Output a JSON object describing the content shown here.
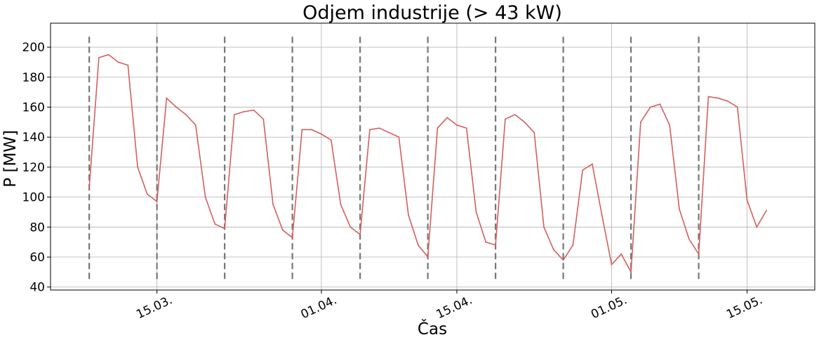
{
  "chart_data": {
    "type": "line",
    "title": "Odjem industrije (> 43 kW)",
    "xlabel": "Čas",
    "ylabel": "P [MW]",
    "xlim": [
      "2021-03-04",
      "2021-05-22"
    ],
    "ylim": [
      38,
      216
    ],
    "yticks": [
      40,
      60,
      80,
      100,
      120,
      140,
      160,
      180,
      200
    ],
    "xticks": [
      {
        "date": "2021-03-15",
        "label": "15.03."
      },
      {
        "date": "2021-04-01",
        "label": "01.04."
      },
      {
        "date": "2021-04-15",
        "label": "15.04."
      },
      {
        "date": "2021-05-01",
        "label": "01.05."
      },
      {
        "date": "2021-05-15",
        "label": "15.05."
      }
    ],
    "grid": true,
    "colors": {
      "series": "#d45f5f",
      "week_markers": "#777777"
    },
    "week_markers": [
      "2021-03-08",
      "2021-03-15",
      "2021-03-22",
      "2021-03-29",
      "2021-04-05",
      "2021-04-12",
      "2021-04-19",
      "2021-04-26",
      "2021-05-03",
      "2021-05-10"
    ],
    "series": [
      {
        "name": "",
        "points": [
          [
            "2021-03-08",
            106
          ],
          [
            "2021-03-09",
            193
          ],
          [
            "2021-03-10",
            195
          ],
          [
            "2021-03-11",
            190
          ],
          [
            "2021-03-12",
            188
          ],
          [
            "2021-03-13",
            120
          ],
          [
            "2021-03-14",
            102
          ],
          [
            "2021-03-15",
            97
          ],
          [
            "2021-03-16",
            166
          ],
          [
            "2021-03-17",
            160
          ],
          [
            "2021-03-18",
            155
          ],
          [
            "2021-03-19",
            148
          ],
          [
            "2021-03-20",
            100
          ],
          [
            "2021-03-21",
            82
          ],
          [
            "2021-03-22",
            79
          ],
          [
            "2021-03-23",
            155
          ],
          [
            "2021-03-24",
            157
          ],
          [
            "2021-03-25",
            158
          ],
          [
            "2021-03-26",
            152
          ],
          [
            "2021-03-27",
            95
          ],
          [
            "2021-03-28",
            78
          ],
          [
            "2021-03-29",
            73
          ],
          [
            "2021-03-30",
            145
          ],
          [
            "2021-03-31",
            145
          ],
          [
            "2021-04-01",
            142
          ],
          [
            "2021-04-02",
            138
          ],
          [
            "2021-04-03",
            95
          ],
          [
            "2021-04-04",
            80
          ],
          [
            "2021-04-05",
            75
          ],
          [
            "2021-04-06",
            145
          ],
          [
            "2021-04-07",
            146
          ],
          [
            "2021-04-08",
            143
          ],
          [
            "2021-04-09",
            140
          ],
          [
            "2021-04-10",
            88
          ],
          [
            "2021-04-11",
            68
          ],
          [
            "2021-04-12",
            60
          ],
          [
            "2021-04-13",
            146
          ],
          [
            "2021-04-14",
            153
          ],
          [
            "2021-04-15",
            148
          ],
          [
            "2021-04-16",
            146
          ],
          [
            "2021-04-17",
            90
          ],
          [
            "2021-04-18",
            70
          ],
          [
            "2021-04-19",
            68
          ],
          [
            "2021-04-20",
            152
          ],
          [
            "2021-04-21",
            155
          ],
          [
            "2021-04-22",
            150
          ],
          [
            "2021-04-23",
            143
          ],
          [
            "2021-04-24",
            80
          ],
          [
            "2021-04-25",
            65
          ],
          [
            "2021-04-26",
            58
          ],
          [
            "2021-04-27",
            68
          ],
          [
            "2021-04-28",
            118
          ],
          [
            "2021-04-29",
            122
          ],
          [
            "2021-04-30",
            88
          ],
          [
            "2021-05-01",
            55
          ],
          [
            "2021-05-02",
            62
          ],
          [
            "2021-05-03",
            50
          ],
          [
            "2021-05-04",
            150
          ],
          [
            "2021-05-05",
            160
          ],
          [
            "2021-05-06",
            162
          ],
          [
            "2021-05-07",
            148
          ],
          [
            "2021-05-08",
            92
          ],
          [
            "2021-05-09",
            72
          ],
          [
            "2021-05-10",
            62
          ],
          [
            "2021-05-11",
            167
          ],
          [
            "2021-05-12",
            166
          ],
          [
            "2021-05-13",
            164
          ],
          [
            "2021-05-14",
            160
          ],
          [
            "2021-05-15",
            98
          ],
          [
            "2021-05-16",
            80
          ],
          [
            "2021-05-17",
            91
          ]
        ]
      }
    ]
  }
}
